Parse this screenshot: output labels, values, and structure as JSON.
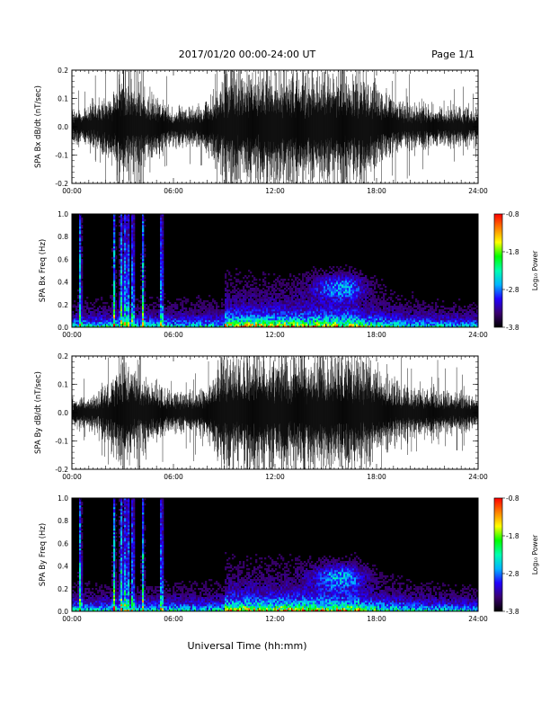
{
  "header": {
    "title": "2017/01/20  00:00-24:00 UT",
    "page": "Page 1/1"
  },
  "footer": {
    "xlabel": "Universal Time (hh:mm)"
  },
  "colorscale": {
    "label": "Log₁₀ Power",
    "ticks": [
      "-0.8",
      "-1.8",
      "-2.8",
      "-3.8"
    ],
    "tick_values": [
      -0.8,
      -1.8,
      -2.8,
      -3.8
    ],
    "range": [
      -3.8,
      -0.8
    ],
    "colors": [
      "#000000",
      "#3a0070",
      "#2200ff",
      "#00b4ff",
      "#00ffb0",
      "#00ff00",
      "#ffff00",
      "#ff8000",
      "#ff0000"
    ]
  },
  "chart_data": [
    {
      "type": "line",
      "ylabel": "SPA Bx dB/dt (nT/sec)",
      "x_ticks": [
        "00:00",
        "06:00",
        "12:00",
        "18:00",
        "24:00"
      ],
      "xlim": [
        0,
        24
      ],
      "y_ticks": [
        "0.2",
        "0.1",
        "0.0",
        "-0.1",
        "-0.2"
      ],
      "y_tick_values": [
        0.2,
        0.1,
        0.0,
        -0.1,
        -0.2
      ],
      "ylim": [
        -0.2,
        0.2
      ],
      "amplitude_envelope": {
        "hours": [
          0,
          1,
          2,
          3,
          4,
          5,
          6,
          7,
          8,
          9,
          10,
          11,
          12,
          13,
          14,
          15,
          16,
          17,
          18,
          19,
          20,
          21,
          22,
          23,
          24
        ],
        "abs_dbdt": [
          0.06,
          0.07,
          0.1,
          0.2,
          0.14,
          0.1,
          0.07,
          0.07,
          0.09,
          0.2,
          0.2,
          0.2,
          0.2,
          0.2,
          0.2,
          0.2,
          0.2,
          0.2,
          0.15,
          0.1,
          0.08,
          0.08,
          0.07,
          0.07,
          0.06
        ]
      }
    },
    {
      "type": "heatmap",
      "ylabel": "SPA Bx Freq (Hz)",
      "x_ticks": [
        "00:00",
        "06:00",
        "12:00",
        "18:00",
        "24:00"
      ],
      "xlim": [
        0,
        24
      ],
      "y_ticks": [
        "1.0",
        "0.8",
        "0.6",
        "0.4",
        "0.2",
        "0.0"
      ],
      "y_tick_values": [
        1.0,
        0.8,
        0.6,
        0.4,
        0.2,
        0.0
      ],
      "ylim": [
        0,
        1.0
      ],
      "zlim": [
        -3.8,
        -0.8
      ],
      "bursts_hours": [
        0.5,
        2.5,
        2.9,
        3.1,
        3.3,
        3.6,
        4.2,
        5.3
      ],
      "enhanced_activity_hours": [
        9.0,
        17.0
      ],
      "enhancement_peak": {
        "hours": 15.8,
        "freq_hz": 0.35
      }
    },
    {
      "type": "line",
      "ylabel": "SPA By dB/dt (nT/sec)",
      "x_ticks": [
        "00:00",
        "06:00",
        "12:00",
        "18:00",
        "24:00"
      ],
      "xlim": [
        0,
        24
      ],
      "y_ticks": [
        "0.2",
        "0.1",
        "0.0",
        "-0.1",
        "-0.2"
      ],
      "y_tick_values": [
        0.2,
        0.1,
        0.0,
        -0.1,
        -0.2
      ],
      "ylim": [
        -0.2,
        0.2
      ],
      "amplitude_envelope": {
        "hours": [
          0,
          1,
          2,
          3,
          4,
          5,
          6,
          7,
          8,
          9,
          10,
          11,
          12,
          13,
          14,
          15,
          16,
          17,
          18,
          19,
          20,
          21,
          22,
          23,
          24
        ],
        "abs_dbdt": [
          0.05,
          0.06,
          0.09,
          0.2,
          0.14,
          0.1,
          0.07,
          0.07,
          0.09,
          0.2,
          0.2,
          0.2,
          0.2,
          0.2,
          0.2,
          0.2,
          0.2,
          0.2,
          0.16,
          0.11,
          0.09,
          0.08,
          0.07,
          0.07,
          0.06
        ]
      }
    },
    {
      "type": "heatmap",
      "ylabel": "SPA By Freq (Hz)",
      "x_ticks": [
        "00:00",
        "06:00",
        "12:00",
        "18:00",
        "24:00"
      ],
      "xlim": [
        0,
        24
      ],
      "y_ticks": [
        "1.0",
        "0.8",
        "0.6",
        "0.4",
        "0.2",
        "0.0"
      ],
      "y_tick_values": [
        1.0,
        0.8,
        0.6,
        0.4,
        0.2,
        0.0
      ],
      "ylim": [
        0,
        1.0
      ],
      "zlim": [
        -3.8,
        -0.8
      ],
      "bursts_hours": [
        0.5,
        2.5,
        2.9,
        3.1,
        3.3,
        3.6,
        4.2,
        5.3
      ],
      "enhanced_activity_hours": [
        9.0,
        17.0
      ],
      "enhancement_peak": {
        "hours": 15.8,
        "freq_hz": 0.3
      }
    }
  ]
}
